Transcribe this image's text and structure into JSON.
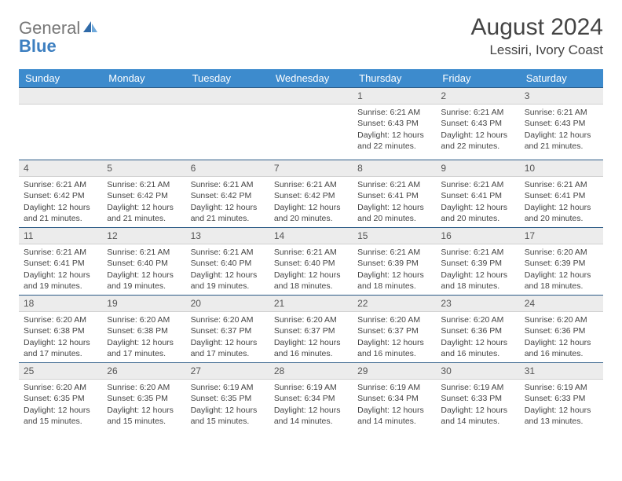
{
  "brand": {
    "part1": "General",
    "part2": "Blue"
  },
  "title": {
    "month": "August 2024",
    "location": "Lessiri, Ivory Coast"
  },
  "weekdayHeaders": [
    "Sunday",
    "Monday",
    "Tuesday",
    "Wednesday",
    "Thursday",
    "Friday",
    "Saturday"
  ],
  "colors": {
    "headerBg": "#3d8bcd",
    "headerText": "#ffffff",
    "dayNumBg": "#ececec",
    "cellBorderTop": "#2c5b86",
    "brandBlue": "#3d7fc0"
  },
  "weeks": [
    [
      {
        "num": "",
        "lines": []
      },
      {
        "num": "",
        "lines": []
      },
      {
        "num": "",
        "lines": []
      },
      {
        "num": "",
        "lines": []
      },
      {
        "num": "1",
        "lines": [
          "Sunrise: 6:21 AM",
          "Sunset: 6:43 PM",
          "Daylight: 12 hours",
          "and 22 minutes."
        ]
      },
      {
        "num": "2",
        "lines": [
          "Sunrise: 6:21 AM",
          "Sunset: 6:43 PM",
          "Daylight: 12 hours",
          "and 22 minutes."
        ]
      },
      {
        "num": "3",
        "lines": [
          "Sunrise: 6:21 AM",
          "Sunset: 6:43 PM",
          "Daylight: 12 hours",
          "and 21 minutes."
        ]
      }
    ],
    [
      {
        "num": "4",
        "lines": [
          "Sunrise: 6:21 AM",
          "Sunset: 6:42 PM",
          "Daylight: 12 hours",
          "and 21 minutes."
        ]
      },
      {
        "num": "5",
        "lines": [
          "Sunrise: 6:21 AM",
          "Sunset: 6:42 PM",
          "Daylight: 12 hours",
          "and 21 minutes."
        ]
      },
      {
        "num": "6",
        "lines": [
          "Sunrise: 6:21 AM",
          "Sunset: 6:42 PM",
          "Daylight: 12 hours",
          "and 21 minutes."
        ]
      },
      {
        "num": "7",
        "lines": [
          "Sunrise: 6:21 AM",
          "Sunset: 6:42 PM",
          "Daylight: 12 hours",
          "and 20 minutes."
        ]
      },
      {
        "num": "8",
        "lines": [
          "Sunrise: 6:21 AM",
          "Sunset: 6:41 PM",
          "Daylight: 12 hours",
          "and 20 minutes."
        ]
      },
      {
        "num": "9",
        "lines": [
          "Sunrise: 6:21 AM",
          "Sunset: 6:41 PM",
          "Daylight: 12 hours",
          "and 20 minutes."
        ]
      },
      {
        "num": "10",
        "lines": [
          "Sunrise: 6:21 AM",
          "Sunset: 6:41 PM",
          "Daylight: 12 hours",
          "and 20 minutes."
        ]
      }
    ],
    [
      {
        "num": "11",
        "lines": [
          "Sunrise: 6:21 AM",
          "Sunset: 6:41 PM",
          "Daylight: 12 hours",
          "and 19 minutes."
        ]
      },
      {
        "num": "12",
        "lines": [
          "Sunrise: 6:21 AM",
          "Sunset: 6:40 PM",
          "Daylight: 12 hours",
          "and 19 minutes."
        ]
      },
      {
        "num": "13",
        "lines": [
          "Sunrise: 6:21 AM",
          "Sunset: 6:40 PM",
          "Daylight: 12 hours",
          "and 19 minutes."
        ]
      },
      {
        "num": "14",
        "lines": [
          "Sunrise: 6:21 AM",
          "Sunset: 6:40 PM",
          "Daylight: 12 hours",
          "and 18 minutes."
        ]
      },
      {
        "num": "15",
        "lines": [
          "Sunrise: 6:21 AM",
          "Sunset: 6:39 PM",
          "Daylight: 12 hours",
          "and 18 minutes."
        ]
      },
      {
        "num": "16",
        "lines": [
          "Sunrise: 6:21 AM",
          "Sunset: 6:39 PM",
          "Daylight: 12 hours",
          "and 18 minutes."
        ]
      },
      {
        "num": "17",
        "lines": [
          "Sunrise: 6:20 AM",
          "Sunset: 6:39 PM",
          "Daylight: 12 hours",
          "and 18 minutes."
        ]
      }
    ],
    [
      {
        "num": "18",
        "lines": [
          "Sunrise: 6:20 AM",
          "Sunset: 6:38 PM",
          "Daylight: 12 hours",
          "and 17 minutes."
        ]
      },
      {
        "num": "19",
        "lines": [
          "Sunrise: 6:20 AM",
          "Sunset: 6:38 PM",
          "Daylight: 12 hours",
          "and 17 minutes."
        ]
      },
      {
        "num": "20",
        "lines": [
          "Sunrise: 6:20 AM",
          "Sunset: 6:37 PM",
          "Daylight: 12 hours",
          "and 17 minutes."
        ]
      },
      {
        "num": "21",
        "lines": [
          "Sunrise: 6:20 AM",
          "Sunset: 6:37 PM",
          "Daylight: 12 hours",
          "and 16 minutes."
        ]
      },
      {
        "num": "22",
        "lines": [
          "Sunrise: 6:20 AM",
          "Sunset: 6:37 PM",
          "Daylight: 12 hours",
          "and 16 minutes."
        ]
      },
      {
        "num": "23",
        "lines": [
          "Sunrise: 6:20 AM",
          "Sunset: 6:36 PM",
          "Daylight: 12 hours",
          "and 16 minutes."
        ]
      },
      {
        "num": "24",
        "lines": [
          "Sunrise: 6:20 AM",
          "Sunset: 6:36 PM",
          "Daylight: 12 hours",
          "and 16 minutes."
        ]
      }
    ],
    [
      {
        "num": "25",
        "lines": [
          "Sunrise: 6:20 AM",
          "Sunset: 6:35 PM",
          "Daylight: 12 hours",
          "and 15 minutes."
        ]
      },
      {
        "num": "26",
        "lines": [
          "Sunrise: 6:20 AM",
          "Sunset: 6:35 PM",
          "Daylight: 12 hours",
          "and 15 minutes."
        ]
      },
      {
        "num": "27",
        "lines": [
          "Sunrise: 6:19 AM",
          "Sunset: 6:35 PM",
          "Daylight: 12 hours",
          "and 15 minutes."
        ]
      },
      {
        "num": "28",
        "lines": [
          "Sunrise: 6:19 AM",
          "Sunset: 6:34 PM",
          "Daylight: 12 hours",
          "and 14 minutes."
        ]
      },
      {
        "num": "29",
        "lines": [
          "Sunrise: 6:19 AM",
          "Sunset: 6:34 PM",
          "Daylight: 12 hours",
          "and 14 minutes."
        ]
      },
      {
        "num": "30",
        "lines": [
          "Sunrise: 6:19 AM",
          "Sunset: 6:33 PM",
          "Daylight: 12 hours",
          "and 14 minutes."
        ]
      },
      {
        "num": "31",
        "lines": [
          "Sunrise: 6:19 AM",
          "Sunset: 6:33 PM",
          "Daylight: 12 hours",
          "and 13 minutes."
        ]
      }
    ]
  ]
}
